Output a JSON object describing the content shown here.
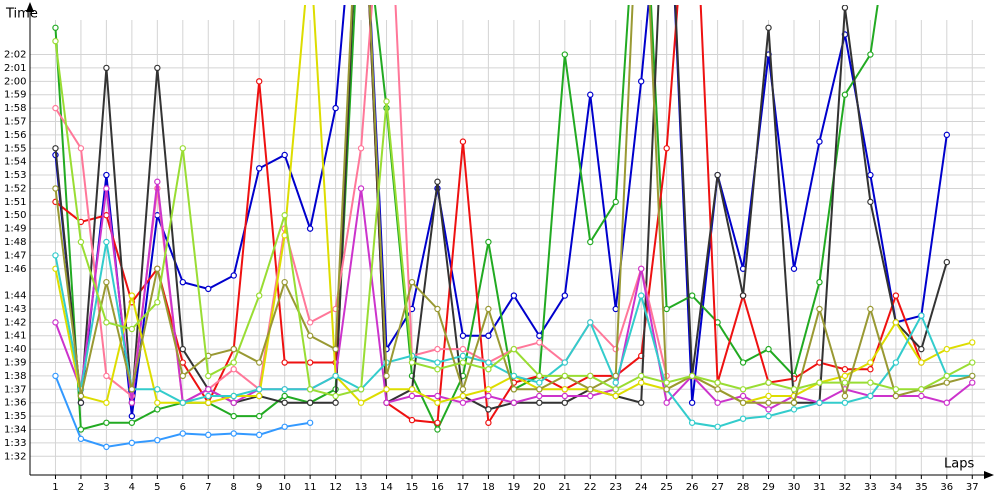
{
  "chart_data": {
    "type": "line",
    "title": "Time",
    "x_label": "Laps",
    "xlim": [
      0,
      37.5
    ],
    "ylim": [
      90.6,
      125.7
    ],
    "xticks": [
      1,
      2,
      3,
      4,
      5,
      6,
      7,
      8,
      9,
      10,
      11,
      12,
      13,
      14,
      15,
      16,
      17,
      18,
      19,
      20,
      21,
      22,
      23,
      24,
      25,
      26,
      27,
      28,
      29,
      30,
      31,
      32,
      33,
      34,
      35,
      36,
      37
    ],
    "yticks": [
      {
        "value": 92,
        "label": "1:32"
      },
      {
        "value": 93,
        "label": "1:33"
      },
      {
        "value": 94,
        "label": "1:34"
      },
      {
        "value": 95,
        "label": "1:35"
      },
      {
        "value": 96,
        "label": "1:36"
      },
      {
        "value": 97,
        "label": "1:37"
      },
      {
        "value": 98,
        "label": "1:38"
      },
      {
        "value": 99,
        "label": "1:39"
      },
      {
        "value": 100,
        "label": "1:40"
      },
      {
        "value": 101,
        "label": "1:41"
      },
      {
        "value": 102,
        "label": "1:42"
      },
      {
        "value": 103,
        "label": "1:43"
      },
      {
        "value": 104,
        "label": "1:44"
      },
      {
        "value": 106,
        "label": "1:46"
      },
      {
        "value": 107,
        "label": "1:47"
      },
      {
        "value": 108,
        "label": "1:48"
      },
      {
        "value": 109,
        "label": "1:49"
      },
      {
        "value": 110,
        "label": "1:50"
      },
      {
        "value": 111,
        "label": "1:51"
      },
      {
        "value": 112,
        "label": "1:52"
      },
      {
        "value": 113,
        "label": "1:53"
      },
      {
        "value": 114,
        "label": "1:54"
      },
      {
        "value": 115,
        "label": "1:55"
      },
      {
        "value": 116,
        "label": "1:56"
      },
      {
        "value": 117,
        "label": "1:57"
      },
      {
        "value": 118,
        "label": "1:58"
      },
      {
        "value": 119,
        "label": "1:59"
      },
      {
        "value": 120,
        "label": "2:00"
      },
      {
        "value": 121,
        "label": "2:01"
      },
      {
        "value": 122,
        "label": "2:02"
      }
    ],
    "grid": true,
    "x": [
      1,
      2,
      3,
      4,
      5,
      6,
      7,
      8,
      9,
      10,
      11,
      12,
      13,
      14,
      15,
      16,
      17,
      18,
      19,
      20,
      21,
      22,
      23,
      24,
      25,
      26,
      27,
      28,
      29,
      30,
      31,
      32,
      33,
      34,
      35,
      36,
      37
    ],
    "series": [
      {
        "color": "#0000cc",
        "values": [
          114.5,
          96,
          113,
          95,
          110,
          105,
          104.5,
          105.5,
          113.5,
          114.5,
          109,
          118,
          140,
          100,
          103,
          112,
          101,
          101,
          104,
          101,
          104,
          119,
          103,
          120,
          140,
          96,
          113,
          106,
          122,
          106,
          115.5,
          123.5,
          113,
          102,
          102.5,
          116,
          null
        ]
      },
      {
        "color": "#22aa22",
        "values": [
          124,
          94,
          94.5,
          94.5,
          95.5,
          96,
          96,
          95,
          95,
          96.5,
          96,
          97,
          135,
          118,
          98,
          94,
          98,
          108,
          97,
          98,
          122,
          108,
          111,
          140,
          103,
          104,
          102,
          99,
          100,
          98,
          105,
          119,
          122,
          135,
          null,
          null,
          null
        ]
      },
      {
        "color": "#3399ff",
        "values": [
          98,
          93.3,
          92.7,
          93,
          93.2,
          93.7,
          93.6,
          93.7,
          93.6,
          94.2,
          94.5,
          null,
          null,
          null,
          null,
          null,
          null,
          null,
          null,
          null,
          null,
          null,
          null,
          null,
          null,
          null,
          null,
          null,
          null,
          null,
          null,
          null,
          null,
          null,
          null,
          null,
          null
        ]
      },
      {
        "color": "#ee1111",
        "values": [
          111,
          109.5,
          110,
          103.5,
          106,
          99,
          96,
          100,
          120,
          99,
          99,
          99,
          140,
          96,
          94.7,
          94.5,
          115.5,
          94.5,
          97.5,
          98,
          97,
          98,
          98,
          99.5,
          115,
          140,
          97.5,
          104,
          97.5,
          97.8,
          99,
          98.5,
          98.5,
          104,
          99,
          null,
          null
        ]
      },
      {
        "color": "#333333",
        "values": [
          115,
          96,
          121,
          96,
          121,
          100,
          97,
          96,
          96.5,
          96,
          96,
          96,
          140,
          96,
          97,
          112.5,
          96.5,
          95.5,
          96,
          96,
          96,
          97,
          96.5,
          96,
          140,
          98,
          113,
          104,
          124,
          96,
          96,
          125.5,
          111,
          102,
          100,
          106.5,
          null
        ]
      },
      {
        "color": "#ff7799",
        "values": [
          118,
          115,
          98,
          96.5,
          112,
          96,
          97,
          98.5,
          97,
          109,
          102,
          103,
          115,
          140,
          99.5,
          100,
          100,
          99,
          100,
          100.5,
          99,
          102,
          100,
          106,
          98,
          null,
          null,
          null,
          null,
          null,
          null,
          null,
          null,
          null,
          null,
          null,
          null
        ]
      },
      {
        "color": "#cc33cc",
        "values": [
          102,
          97,
          112,
          96,
          112.5,
          96,
          97,
          96,
          97,
          97,
          97,
          98,
          112,
          96,
          96.5,
          96.5,
          96,
          96.5,
          96,
          96.5,
          96.5,
          96.5,
          97,
          106,
          96,
          98,
          96,
          96.5,
          95.5,
          96.5,
          96,
          97,
          96.5,
          96.5,
          96.5,
          96,
          97.5
        ]
      },
      {
        "color": "#dddd00",
        "values": [
          106,
          96.5,
          96,
          104,
          96,
          96,
          96,
          96.5,
          96.5,
          108.5,
          130,
          98,
          96,
          97,
          97,
          96,
          96.5,
          97,
          98,
          97,
          97,
          97,
          96.5,
          97.5,
          97,
          98,
          97,
          96,
          96.5,
          96.5,
          97.5,
          98,
          99,
          102,
          99,
          100,
          100.5
        ]
      },
      {
        "color": "#33cccc",
        "values": [
          107,
          97,
          108,
          97,
          97,
          96,
          96.5,
          96.5,
          97,
          97,
          97,
          98,
          97,
          99,
          99.5,
          99,
          99.5,
          99,
          98,
          97.5,
          99,
          102,
          97.5,
          104,
          97,
          94.5,
          94.2,
          94.8,
          95,
          95.5,
          96,
          96,
          96.5,
          99,
          102.5,
          98,
          98
        ]
      },
      {
        "color": "#999933",
        "values": [
          112,
          96.5,
          105,
          97,
          106,
          98,
          99.5,
          100,
          99,
          105,
          101,
          100,
          140,
          98,
          105,
          103,
          97,
          103,
          97,
          97,
          98,
          97,
          98,
          140,
          97,
          98,
          97,
          96,
          96,
          96,
          103,
          96.5,
          103,
          96.5,
          97,
          97.5,
          98
        ]
      },
      {
        "color": "#99dd33",
        "values": [
          123,
          108,
          102,
          101.5,
          103.5,
          115,
          98,
          99,
          104,
          110,
          97,
          96.5,
          97,
          118.5,
          99,
          98.5,
          99,
          98.5,
          100,
          98,
          98,
          98,
          97,
          98,
          97.5,
          98,
          97.5,
          97,
          97.5,
          97,
          97.5,
          97.5,
          97.5,
          97,
          97,
          98,
          99
        ]
      }
    ]
  }
}
